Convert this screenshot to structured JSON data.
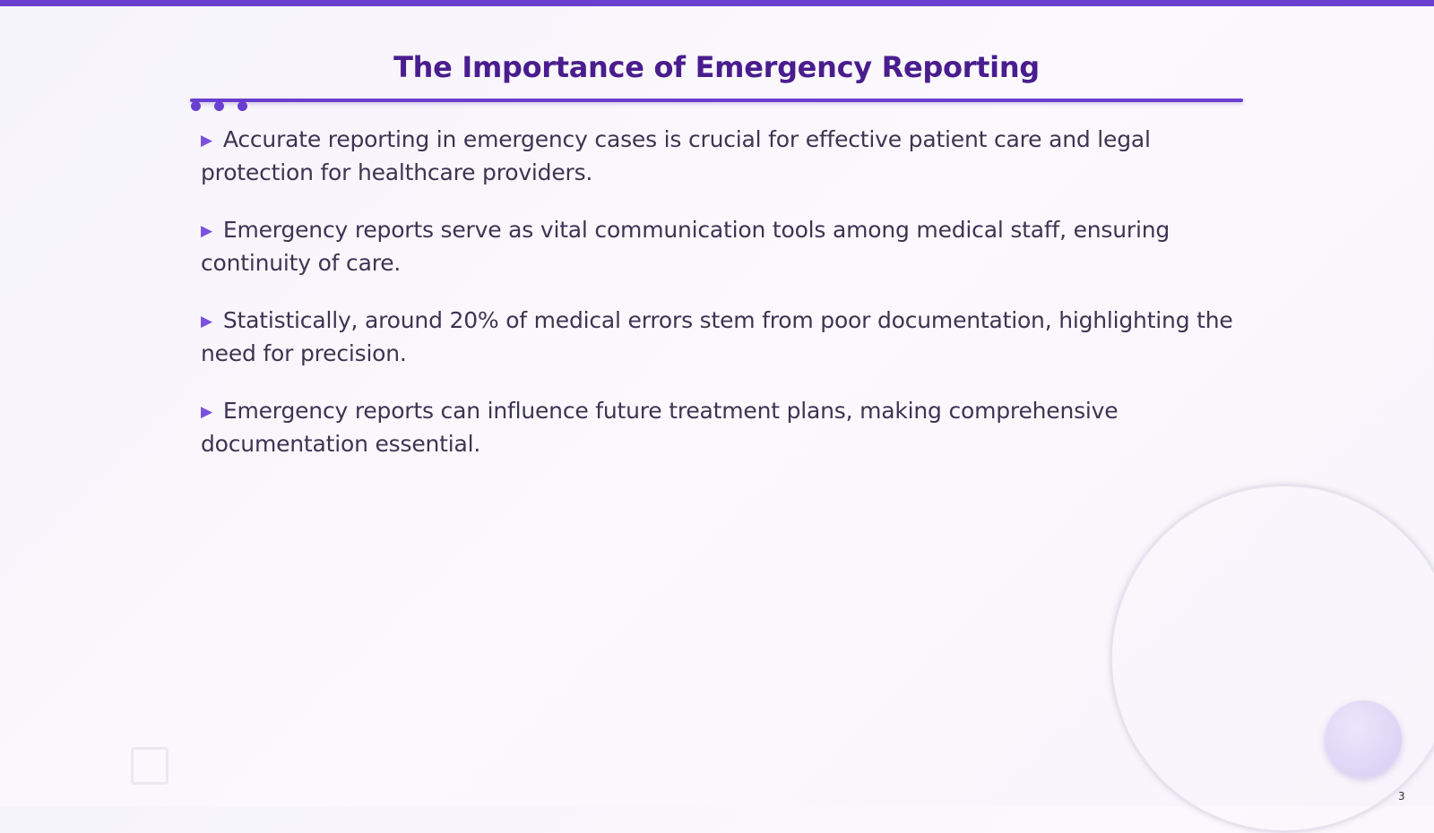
{
  "slide": {
    "title": "The Importance of Emergency Reporting",
    "bullets": [
      "Accurate reporting in emergency cases is crucial for effective patient care and legal protection for healthcare providers.",
      "Emergency reports serve as vital communication tools among medical staff, ensuring continuity of care.",
      "Statistically, around 20% of medical errors stem from poor documentation, highlighting the need for precision.",
      "Emergency reports can influence future treatment plans, making comprehensive documentation essential."
    ],
    "page_number": 3
  }
}
